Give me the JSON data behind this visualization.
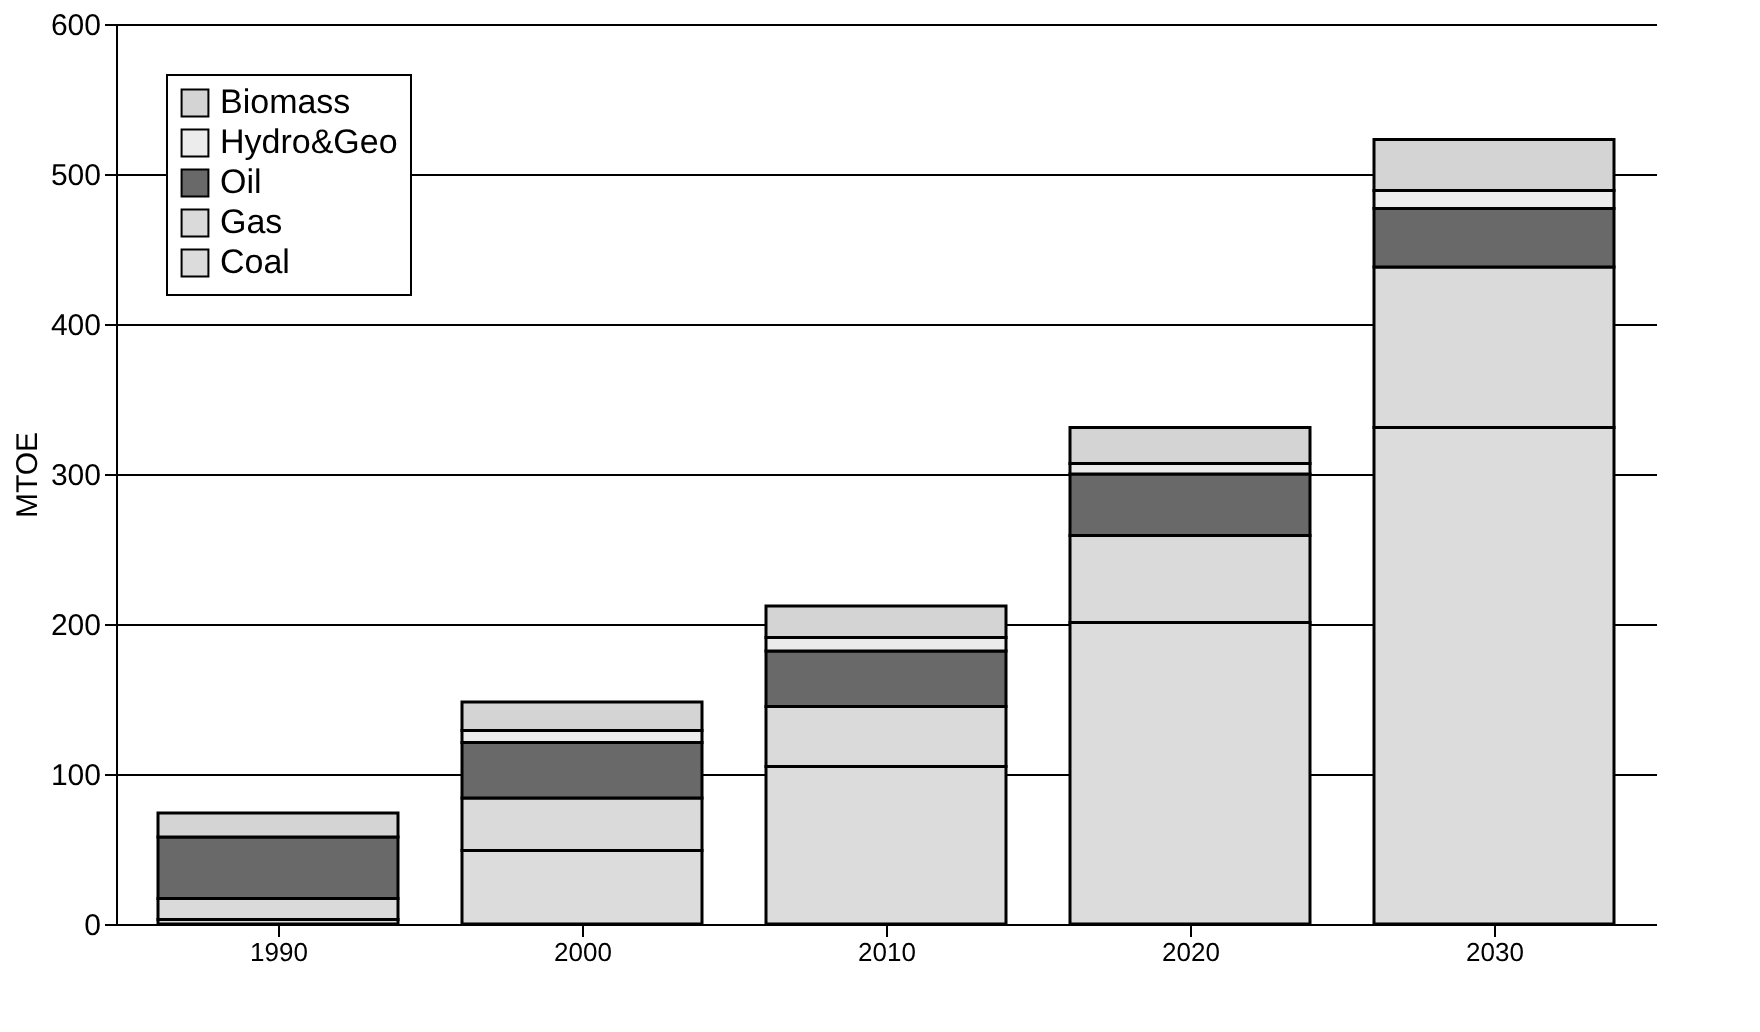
{
  "chart_data": {
    "type": "bar",
    "stacked": true,
    "ylabel": "MTOE",
    "categories": [
      "1990",
      "2000",
      "2010",
      "2020",
      "2030"
    ],
    "series": [
      {
        "name": "Coal",
        "color": "#dcdcdc",
        "values": [
          3,
          49,
          105,
          201,
          331
        ]
      },
      {
        "name": "Gas",
        "color": "#dadada",
        "values": [
          14,
          35,
          40,
          58,
          107
        ]
      },
      {
        "name": "Oil",
        "color": "#696969",
        "values": [
          41,
          37,
          37,
          41,
          39
        ]
      },
      {
        "name": "Hydro&Geo",
        "color": "#ececec",
        "values": [
          null,
          8,
          9,
          7,
          12
        ]
      },
      {
        "name": "Biomass",
        "color": "#d4d4d4",
        "values": [
          16,
          19,
          21,
          24,
          34
        ]
      }
    ],
    "ylim": [
      0,
      600
    ],
    "yticks": [
      0,
      100,
      200,
      300,
      400,
      500,
      600
    ],
    "grid": "y",
    "legend": "top left"
  }
}
